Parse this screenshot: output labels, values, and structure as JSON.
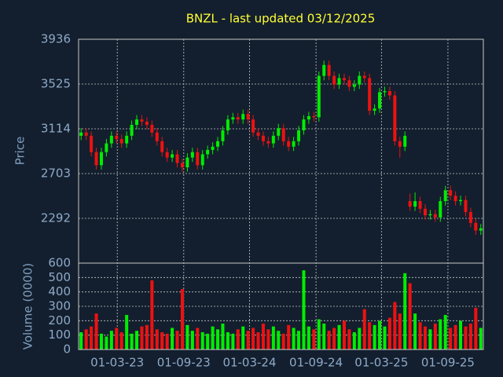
{
  "chart_data": {
    "type": "candlestick",
    "title": "BNZL - last updated 03/12/2025",
    "ylabel": "Price",
    "volume_label": "Volume (0000)",
    "up_color": "#00ee00",
    "down_color": "#ee1111",
    "grid": true,
    "xlim": [
      "2022-11-14",
      "2025-12-08"
    ],
    "xticks": [
      {
        "value": "2023-03-01",
        "label": "01-03-23"
      },
      {
        "value": "2023-09-01",
        "label": "01-09-23"
      },
      {
        "value": "2024-03-01",
        "label": "01-03-24"
      },
      {
        "value": "2024-09-01",
        "label": "01-09-24"
      },
      {
        "value": "2025-03-01",
        "label": "01-03-25"
      },
      {
        "value": "2025-09-01",
        "label": "01-09-25"
      }
    ],
    "ylim": [
      1881,
      3936
    ],
    "yticks": [
      2292,
      2703,
      3114,
      3525,
      3936
    ],
    "volume_ylim": [
      0,
      600
    ],
    "volume_yticks": [
      0,
      100,
      200,
      300,
      400,
      500,
      600
    ],
    "x": [
      "2022-11-21",
      "2022-12-05",
      "2022-12-19",
      "2023-01-02",
      "2023-01-16",
      "2023-01-30",
      "2023-02-13",
      "2023-02-27",
      "2023-03-13",
      "2023-03-27",
      "2023-04-10",
      "2023-04-24",
      "2023-05-08",
      "2023-05-22",
      "2023-06-05",
      "2023-06-19",
      "2023-07-03",
      "2023-07-17",
      "2023-07-31",
      "2023-08-14",
      "2023-08-28",
      "2023-09-11",
      "2023-09-25",
      "2023-10-09",
      "2023-10-23",
      "2023-11-06",
      "2023-11-20",
      "2023-12-04",
      "2023-12-18",
      "2024-01-01",
      "2024-01-15",
      "2024-01-29",
      "2024-02-12",
      "2024-02-26",
      "2024-03-11",
      "2024-03-25",
      "2024-04-08",
      "2024-04-22",
      "2024-05-06",
      "2024-05-20",
      "2024-06-03",
      "2024-06-17",
      "2024-07-01",
      "2024-07-15",
      "2024-07-29",
      "2024-08-12",
      "2024-08-26",
      "2024-09-09",
      "2024-09-23",
      "2024-10-07",
      "2024-10-21",
      "2024-11-04",
      "2024-11-18",
      "2024-12-02",
      "2024-12-16",
      "2024-12-30",
      "2025-01-13",
      "2025-01-27",
      "2025-02-10",
      "2025-02-24",
      "2025-03-10",
      "2025-03-24",
      "2025-04-07",
      "2025-04-21",
      "2025-05-05",
      "2025-05-19",
      "2025-06-02",
      "2025-06-16",
      "2025-06-30",
      "2025-07-14",
      "2025-07-28",
      "2025-08-11",
      "2025-08-25",
      "2025-09-08",
      "2025-09-22",
      "2025-10-06",
      "2025-10-20",
      "2025-11-03",
      "2025-11-17",
      "2025-12-01"
    ],
    "open": [
      3050,
      3080,
      3050,
      2900,
      2780,
      2900,
      2980,
      3050,
      3020,
      2980,
      3050,
      3150,
      3200,
      3180,
      3150,
      3080,
      3000,
      2900,
      2850,
      2880,
      2800,
      2760,
      2850,
      2900,
      2780,
      2880,
      2920,
      2950,
      3000,
      3100,
      3200,
      3220,
      3200,
      3250,
      3200,
      3080,
      3050,
      3000,
      2980,
      3050,
      3120,
      3000,
      2950,
      3000,
      3100,
      3200,
      3230,
      3220,
      3600,
      3700,
      3600,
      3520,
      3580,
      3560,
      3500,
      3520,
      3600,
      3580,
      3280,
      3300,
      3450,
      3460,
      3420,
      3000,
      2950,
      2450,
      2400,
      2450,
      2380,
      2320,
      2330,
      2300,
      2450,
      2550,
      2500,
      2450,
      2460,
      2350,
      2250,
      2180
    ],
    "high": [
      3120,
      3120,
      3090,
      2940,
      2940,
      3020,
      3090,
      3090,
      3060,
      3090,
      3190,
      3240,
      3240,
      3220,
      3190,
      3120,
      3040,
      2940,
      2920,
      2920,
      2840,
      2890,
      2940,
      2940,
      2920,
      2960,
      2990,
      3040,
      3140,
      3240,
      3260,
      3260,
      3290,
      3290,
      3240,
      3120,
      3090,
      3040,
      3090,
      3160,
      3160,
      3040,
      3040,
      3140,
      3240,
      3270,
      3270,
      3640,
      3740,
      3740,
      3640,
      3620,
      3620,
      3600,
      3560,
      3640,
      3640,
      3620,
      3340,
      3490,
      3500,
      3500,
      3460,
      3040,
      3090,
      2520,
      2530,
      2490,
      2420,
      2370,
      2370,
      2490,
      2590,
      2590,
      2540,
      2500,
      2500,
      2390,
      2290,
      2240
    ],
    "low": [
      3010,
      3010,
      2860,
      2740,
      2740,
      2860,
      2940,
      2980,
      2940,
      2940,
      3010,
      3110,
      3140,
      3110,
      3040,
      2960,
      2860,
      2810,
      2810,
      2760,
      2720,
      2720,
      2810,
      2740,
      2740,
      2840,
      2880,
      2910,
      2960,
      3060,
      3160,
      3160,
      3160,
      3160,
      3040,
      3010,
      2960,
      2940,
      2940,
      3010,
      2960,
      2910,
      2910,
      2960,
      3060,
      3160,
      3180,
      3180,
      3560,
      3560,
      3480,
      3480,
      3520,
      3460,
      3460,
      3480,
      3540,
      3240,
      3240,
      3260,
      3410,
      3380,
      2960,
      2850,
      2910,
      2360,
      2360,
      2340,
      2280,
      2280,
      2260,
      2260,
      2410,
      2460,
      2410,
      2410,
      2310,
      2210,
      2140,
      2140
    ],
    "close": [
      3080,
      3050,
      2900,
      2780,
      2900,
      2980,
      3050,
      3020,
      2980,
      3050,
      3150,
      3200,
      3180,
      3150,
      3080,
      3000,
      2900,
      2850,
      2880,
      2800,
      2760,
      2850,
      2900,
      2780,
      2880,
      2920,
      2950,
      3000,
      3100,
      3200,
      3220,
      3200,
      3250,
      3200,
      3080,
      3050,
      3000,
      2980,
      3050,
      3120,
      3000,
      2950,
      3000,
      3100,
      3200,
      3230,
      3220,
      3600,
      3700,
      3600,
      3520,
      3580,
      3560,
      3500,
      3520,
      3600,
      3580,
      3280,
      3300,
      3450,
      3460,
      3420,
      3000,
      2950,
      3050,
      2400,
      2450,
      2380,
      2320,
      2330,
      2300,
      2450,
      2550,
      2500,
      2450,
      2460,
      2350,
      2250,
      2180,
      2200
    ],
    "volume": [
      120,
      140,
      160,
      250,
      110,
      90,
      130,
      150,
      120,
      240,
      110,
      130,
      160,
      170,
      480,
      140,
      120,
      110,
      150,
      130,
      420,
      170,
      130,
      150,
      120,
      110,
      160,
      140,
      180,
      120,
      110,
      140,
      160,
      130,
      150,
      120,
      180,
      140,
      160,
      130,
      110,
      170,
      150,
      130,
      550,
      160,
      140,
      210,
      180,
      130,
      150,
      170,
      200,
      140,
      120,
      150,
      280,
      190,
      170,
      200,
      160,
      220,
      330,
      250,
      530,
      460,
      250,
      190,
      160,
      140,
      180,
      210,
      240,
      150,
      170,
      200,
      160,
      180,
      290,
      150
    ]
  }
}
